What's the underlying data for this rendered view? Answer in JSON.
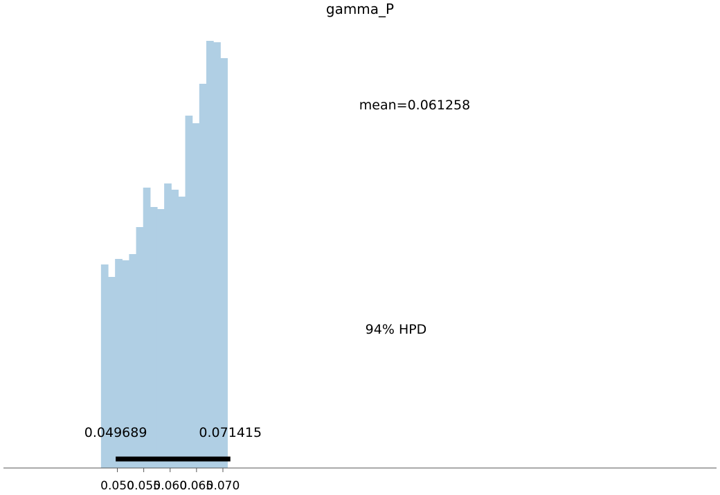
{
  "chart_data": {
    "type": "bar",
    "title": "gamma_P",
    "xlabel": "",
    "ylabel": "",
    "bin_edges": [
      0.0469,
      0.04823,
      0.04956,
      0.05089,
      0.05222,
      0.05355,
      0.05488,
      0.05621,
      0.05754,
      0.05887,
      0.0602,
      0.06153,
      0.06286,
      0.06419,
      0.06552,
      0.06685,
      0.06818,
      0.06951,
      0.07084
    ],
    "values": [
      294,
      276,
      302,
      300,
      309,
      348,
      405,
      377,
      374,
      411,
      402,
      392,
      509,
      498,
      555,
      617,
      615,
      592
    ],
    "xlim": [
      0.0469,
      0.0717
    ],
    "ylim": [
      0,
      630
    ],
    "xticks": [
      "0.050",
      "0.055",
      "0.060",
      "0.065",
      "0.070"
    ],
    "xtick_values": [
      0.05,
      0.055,
      0.06,
      0.065,
      0.07
    ],
    "bar_color": "#b0cfe4",
    "mean_label": "mean=0.061258",
    "hpd": {
      "label": "94% HPD",
      "low": 0.049689,
      "high": 0.071415,
      "low_label": "0.049689",
      "high_label": "0.071415"
    },
    "grid": false,
    "legend": "none"
  }
}
